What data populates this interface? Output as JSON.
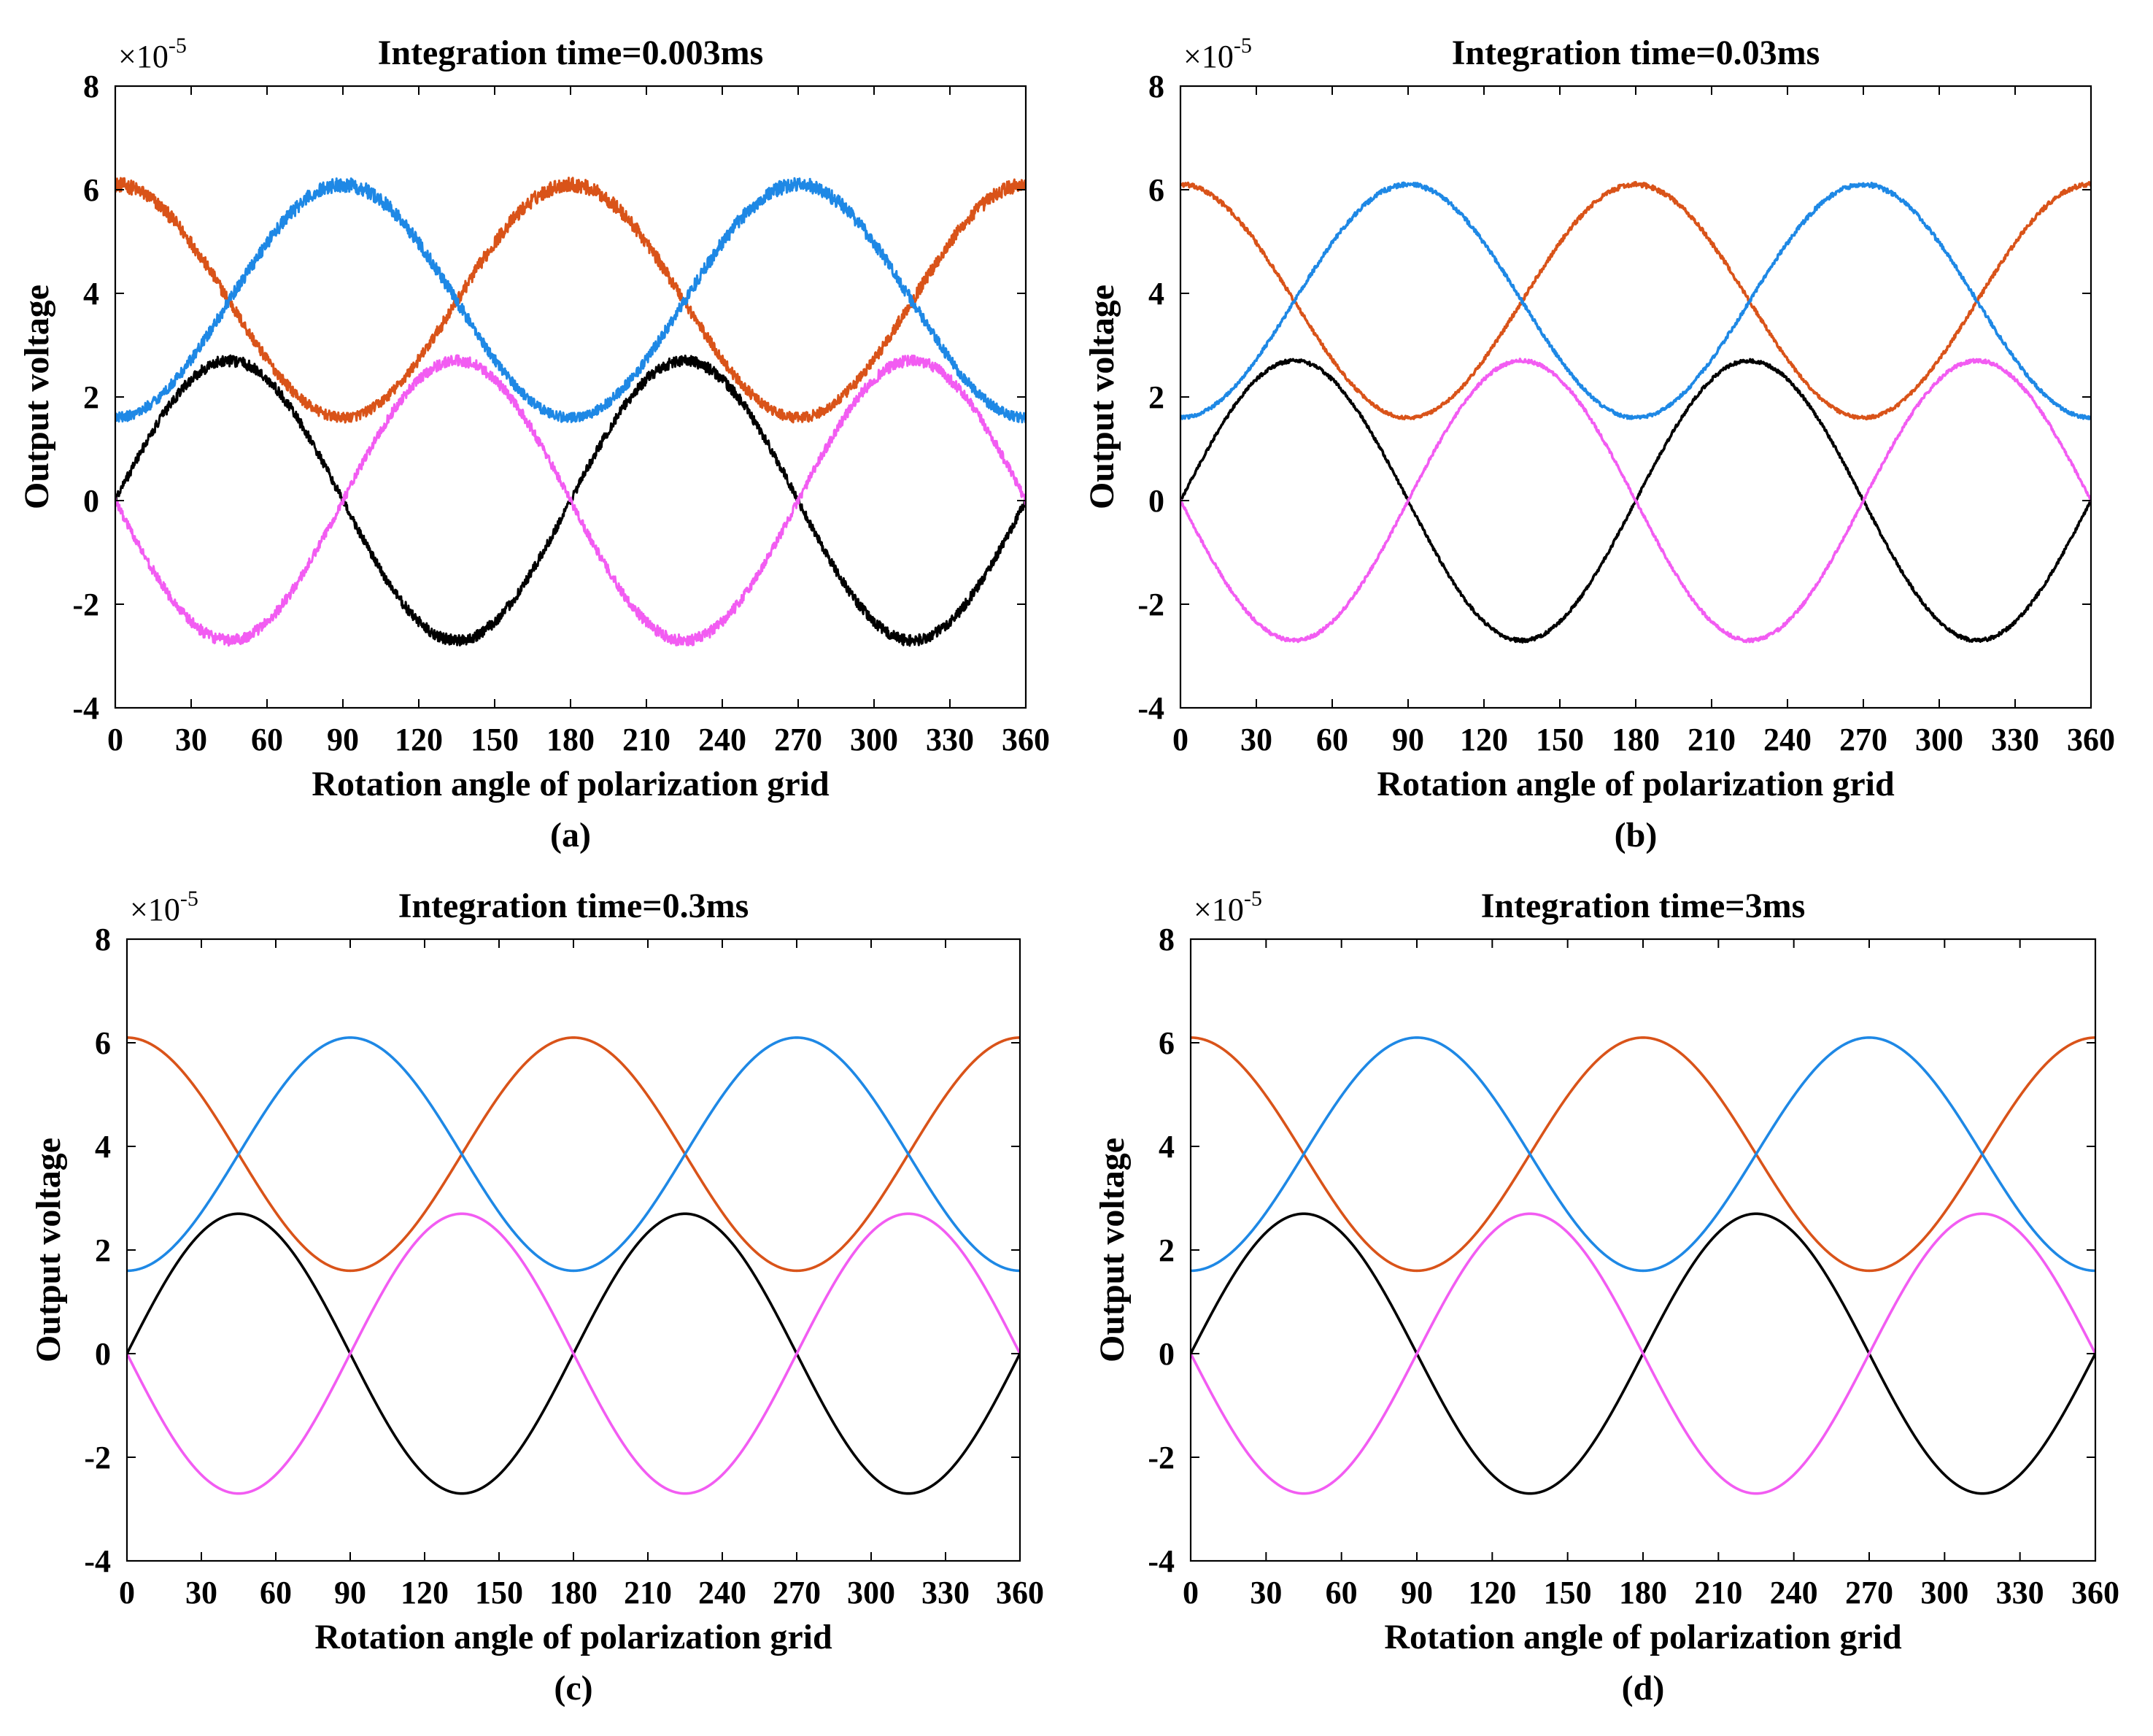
{
  "figure": {
    "colors": {
      "orange": "#D95319",
      "blue": "#1E88E5",
      "black": "#000000",
      "magenta": "#F25CF2",
      "axis": "#000000",
      "background": "#FFFFFF"
    }
  },
  "chart_data": [
    {
      "type": "line",
      "title": "Integration time=0.003ms",
      "panel_label": "(a)",
      "xlabel": "Rotation angle of polarization grid",
      "ylabel": "Output voltage",
      "exponent_label": "×10",
      "exponent_power": "-5",
      "xlim": [
        0,
        360
      ],
      "ylim": [
        -4,
        8
      ],
      "xticks": [
        "0",
        "30",
        "60",
        "90",
        "120",
        "150",
        "180",
        "210",
        "240",
        "270",
        "300",
        "330",
        "360"
      ],
      "yticks": [
        "-4",
        "-2",
        "0",
        "2",
        "4",
        "6",
        "8"
      ],
      "noise": 0.14,
      "series": [
        {
          "name": "orange",
          "formula": "3.85 + 2.25*cos(2x)",
          "peak": 6.1,
          "trough": 1.6
        },
        {
          "name": "blue",
          "formula": "3.85 - 2.25*cos(2x)",
          "peak": 6.1,
          "trough": 1.6
        },
        {
          "name": "black",
          "formula": "2.7*sin(2x)",
          "peak": 2.7,
          "trough": -2.7
        },
        {
          "name": "magenta",
          "formula": "-2.7*sin(2x)",
          "peak": 2.7,
          "trough": -2.7
        }
      ]
    },
    {
      "type": "line",
      "title": "Integration time=0.03ms",
      "panel_label": "(b)",
      "xlabel": "Rotation angle of polarization grid",
      "ylabel": "Output voltage",
      "exponent_label": "×10",
      "exponent_power": "-5",
      "xlim": [
        0,
        360
      ],
      "ylim": [
        -4,
        8
      ],
      "xticks": [
        "0",
        "30",
        "60",
        "90",
        "120",
        "150",
        "180",
        "210",
        "240",
        "270",
        "300",
        "330",
        "360"
      ],
      "yticks": [
        "-4",
        "-2",
        "0",
        "2",
        "4",
        "6",
        "8"
      ],
      "noise": 0.045,
      "series": [
        {
          "name": "orange",
          "formula": "3.85 + 2.25*cos(2x)",
          "peak": 6.1,
          "trough": 1.6
        },
        {
          "name": "blue",
          "formula": "3.85 - 2.25*cos(2x)",
          "peak": 6.1,
          "trough": 1.6
        },
        {
          "name": "black",
          "formula": "2.7*sin(2x)",
          "peak": 2.7,
          "trough": -2.7
        },
        {
          "name": "magenta",
          "formula": "-2.7*sin(2x)",
          "peak": 2.7,
          "trough": -2.7
        }
      ]
    },
    {
      "type": "line",
      "title": "Integration time=0.3ms",
      "panel_label": "(c)",
      "xlabel": "Rotation angle of polarization grid",
      "ylabel": "Output voltage",
      "exponent_label": "×10",
      "exponent_power": "-5",
      "xlim": [
        0,
        360
      ],
      "ylim": [
        -4,
        8
      ],
      "xticks": [
        "0",
        "30",
        "60",
        "90",
        "120",
        "150",
        "180",
        "210",
        "240",
        "270",
        "300",
        "330",
        "360"
      ],
      "yticks": [
        "-4",
        "-2",
        "0",
        "2",
        "4",
        "6",
        "8"
      ],
      "noise": 0.0,
      "series": [
        {
          "name": "orange",
          "formula": "3.85 + 2.25*cos(2x)",
          "peak": 6.1,
          "trough": 1.6
        },
        {
          "name": "blue",
          "formula": "3.85 - 2.25*cos(2x)",
          "peak": 6.1,
          "trough": 1.6
        },
        {
          "name": "black",
          "formula": "2.7*sin(2x)",
          "peak": 2.7,
          "trough": -2.7
        },
        {
          "name": "magenta",
          "formula": "-2.7*sin(2x)",
          "peak": 2.7,
          "trough": -2.7
        }
      ]
    },
    {
      "type": "line",
      "title": "Integration time=3ms",
      "panel_label": "(d)",
      "xlabel": "Rotation angle of polarization grid",
      "ylabel": "Output voltage",
      "exponent_label": "×10",
      "exponent_power": "-5",
      "xlim": [
        0,
        360
      ],
      "ylim": [
        -4,
        8
      ],
      "xticks": [
        "0",
        "30",
        "60",
        "90",
        "120",
        "150",
        "180",
        "210",
        "240",
        "270",
        "300",
        "330",
        "360"
      ],
      "yticks": [
        "-4",
        "-2",
        "0",
        "2",
        "4",
        "6",
        "8"
      ],
      "noise": 0.0,
      "series": [
        {
          "name": "orange",
          "formula": "3.85 + 2.25*cos(2x)",
          "peak": 6.1,
          "trough": 1.6
        },
        {
          "name": "blue",
          "formula": "3.85 - 2.25*cos(2x)",
          "peak": 6.1,
          "trough": 1.6
        },
        {
          "name": "black",
          "formula": "2.7*sin(2x)",
          "peak": 2.7,
          "trough": -2.7
        },
        {
          "name": "magenta",
          "formula": "-2.7*sin(2x)",
          "peak": 2.7,
          "trough": -2.7
        }
      ]
    }
  ]
}
